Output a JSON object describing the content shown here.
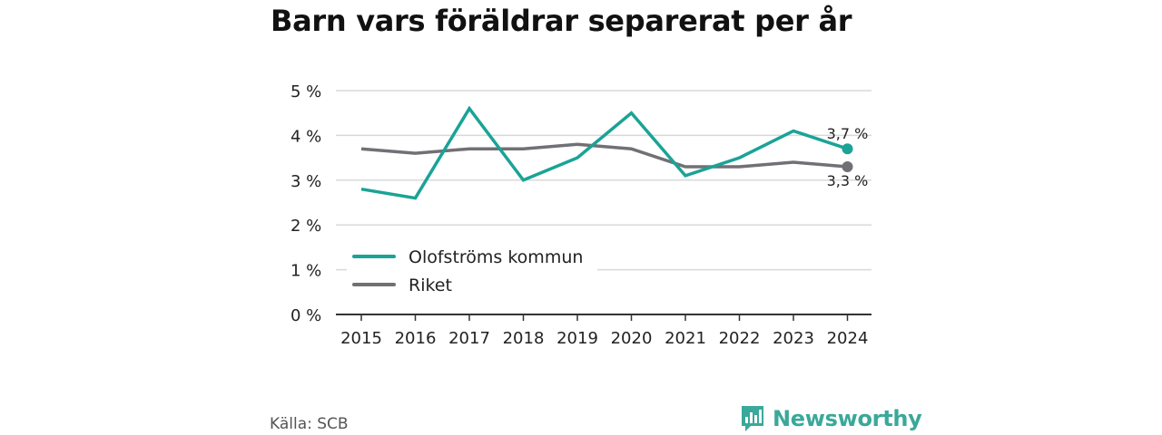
{
  "title": "Barn vars föräldrar separerat per år",
  "source": "Källa: SCB",
  "brand": {
    "name": "Newsworthy",
    "icon": "bar-chart-logo-icon",
    "color": "#3aa89a"
  },
  "chart_data": {
    "type": "line",
    "x": [
      "2015",
      "2016",
      "2017",
      "2018",
      "2019",
      "2020",
      "2021",
      "2022",
      "2023",
      "2024"
    ],
    "ylim": [
      0,
      5
    ],
    "yticks": [
      0,
      1,
      2,
      3,
      4,
      5
    ],
    "ytick_labels": [
      "0 %",
      "1 %",
      "2 %",
      "3 %",
      "4 %",
      "5 %"
    ],
    "grid": true,
    "legend_position": "bottom-left",
    "series": [
      {
        "name": "Olofströms kommun",
        "color": "#1aa396",
        "values": [
          2.8,
          2.6,
          4.6,
          3.0,
          3.5,
          4.5,
          3.1,
          3.5,
          4.1,
          3.7
        ],
        "end_label": "3,7 %"
      },
      {
        "name": "Riket",
        "color": "#707075",
        "values": [
          3.7,
          3.6,
          3.7,
          3.7,
          3.8,
          3.7,
          3.3,
          3.3,
          3.4,
          3.3
        ],
        "end_label": "3,3 %"
      }
    ]
  }
}
